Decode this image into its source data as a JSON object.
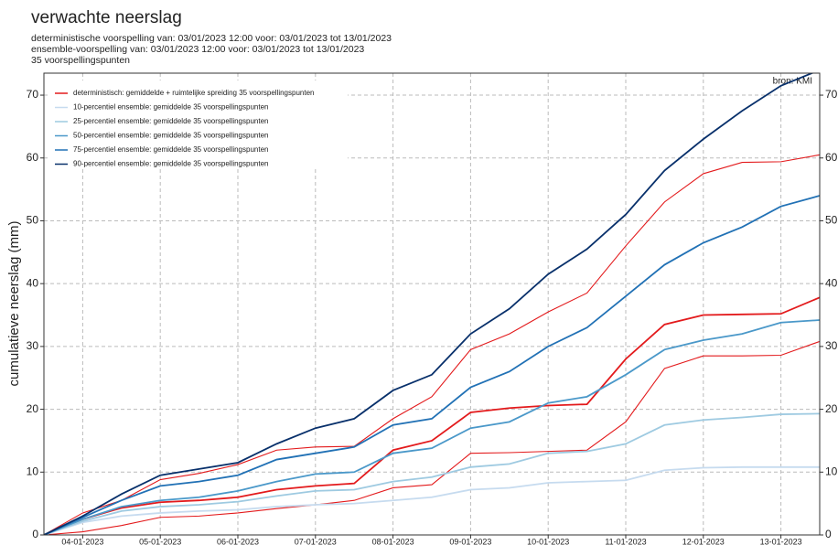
{
  "chart_data": {
    "type": "line",
    "title": "verwachte neerslag",
    "subtitles": [
      "deterministische voorspelling van: 03/01/2023 12:00 voor: 03/01/2023 tot 13/01/2023",
      "ensemble-voorspelling van: 03/01/2023 12:00 voor: 03/01/2023 tot 13/01/2023",
      "35 voorspellingspunten"
    ],
    "ylabel": "cumulatieve neerslag (mm)",
    "annotation": "bron: KMI",
    "x": [
      3.5,
      4,
      4.5,
      5,
      5.5,
      6,
      6.5,
      7,
      7.5,
      8,
      8.5,
      9,
      9.5,
      10,
      10.5,
      11,
      11.5,
      12,
      12.5,
      13,
      13.5
    ],
    "xlim": [
      3.5,
      13.5
    ],
    "xticks": [
      {
        "value": 4,
        "label": "04-01-2023"
      },
      {
        "value": 5,
        "label": "05-01-2023"
      },
      {
        "value": 6,
        "label": "06-01-2023"
      },
      {
        "value": 7,
        "label": "07-01-2023"
      },
      {
        "value": 8,
        "label": "08-01-2023"
      },
      {
        "value": 9,
        "label": "09-01-2023"
      },
      {
        "value": 10,
        "label": "10-01-2023"
      },
      {
        "value": 11,
        "label": "11-01-2023"
      },
      {
        "value": 12,
        "label": "12-01-2023"
      },
      {
        "value": 13,
        "label": "13-01-2023"
      }
    ],
    "ylim": [
      0,
      73.5
    ],
    "yticks": [
      0,
      10,
      20,
      30,
      40,
      50,
      60,
      70
    ],
    "grid": true,
    "legend": "top-left",
    "series": [
      {
        "name": "deterministisch: gemiddelde + ruimtelijke spreiding 35 voorspellingspunten",
        "color": "#e31a1c",
        "values": [
          0,
          2.5,
          4.3,
          5.2,
          5.5,
          6.0,
          7.2,
          7.8,
          8.2,
          13.5,
          15,
          19.5,
          20.2,
          20.6,
          20.8,
          28,
          33.5,
          35,
          35.1,
          35.2,
          37.8
        ],
        "upper": [
          0,
          3.5,
          5.5,
          8.8,
          9.8,
          11.2,
          13.5,
          14,
          14.1,
          18.5,
          22,
          29.5,
          32,
          35.5,
          38.5,
          46,
          53,
          57.5,
          59.3,
          59.4,
          60.5
        ],
        "lower": [
          0,
          0.5,
          1.5,
          2.8,
          3.0,
          3.5,
          4.2,
          4.8,
          5.5,
          7.5,
          8,
          13,
          13.1,
          13.3,
          13.5,
          18,
          26.5,
          28.5,
          28.5,
          28.6,
          30.8
        ]
      },
      {
        "name": "10-percentiel ensemble: gemiddelde 35 voorspellingspunten",
        "color": "#c6dbef",
        "values": [
          0,
          2,
          3,
          3.5,
          3.8,
          4,
          4.5,
          4.8,
          5,
          5.5,
          6,
          7.2,
          7.5,
          8.3,
          8.5,
          8.7,
          10.3,
          10.7,
          10.8,
          10.8,
          10.8
        ]
      },
      {
        "name": "25-percentiel ensemble: gemiddelde 35 voorspellingspunten",
        "color": "#9ecae1",
        "values": [
          0,
          2.2,
          3.8,
          4.5,
          4.8,
          5.3,
          6.2,
          7.0,
          7.2,
          8.5,
          9.2,
          10.8,
          11.3,
          13,
          13.3,
          14.5,
          17.5,
          18.3,
          18.7,
          19.2,
          19.3
        ]
      },
      {
        "name": "50-percentiel ensemble: gemiddelde 35 voorspellingspunten",
        "color": "#4a98c9",
        "values": [
          0,
          2.5,
          4.5,
          5.5,
          6,
          7,
          8.5,
          9.7,
          10,
          13,
          13.8,
          17,
          18,
          21,
          22,
          25.5,
          29.5,
          31,
          32,
          33.8,
          34.2
        ]
      },
      {
        "name": "75-percentiel ensemble: gemiddelde 35 voorspellingspunten",
        "color": "#2171b5",
        "values": [
          0,
          2.8,
          5.5,
          7.8,
          8.5,
          9.5,
          12,
          13,
          14,
          17.5,
          18.5,
          23.5,
          26,
          30,
          33,
          38,
          43,
          46.5,
          49,
          52.3,
          54
        ]
      },
      {
        "name": "90-percentiel ensemble: gemiddelde 35 voorspellingspunten",
        "color": "#08306b",
        "values": [
          0,
          3,
          6.5,
          9.5,
          10.5,
          11.5,
          14.5,
          17,
          18.5,
          23,
          25.5,
          32,
          36,
          41.5,
          45.5,
          51,
          58,
          63,
          67.5,
          71.5,
          74
        ]
      }
    ]
  }
}
